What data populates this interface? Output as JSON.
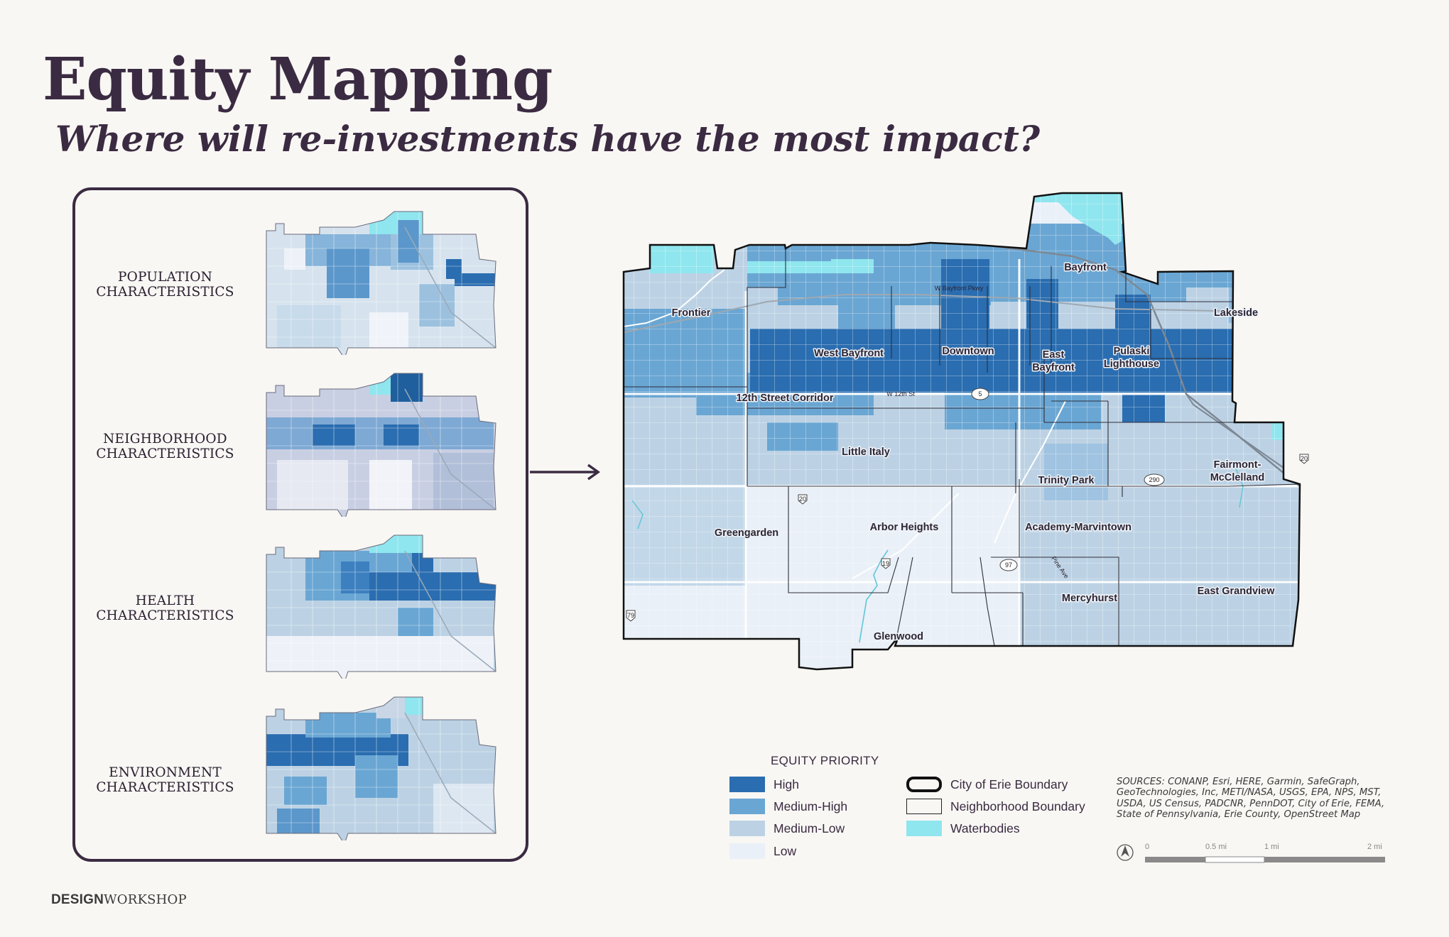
{
  "header": {
    "title": "Equity Mapping",
    "subtitle": "Where will re-investments have the most impact?"
  },
  "thumbnails": [
    {
      "line1": "POPULATION",
      "line2": "CHARACTERISTICS"
    },
    {
      "line1": "NEIGHBORHOOD",
      "line2": "CHARACTERISTICS"
    },
    {
      "line1": "HEALTH",
      "line2": "CHARACTERISTICS"
    },
    {
      "line1": "ENVIRONMENT",
      "line2": "CHARACTERISTICS"
    }
  ],
  "map": {
    "neighborhoods": [
      "Bayfront",
      "Frontier",
      "Lakeside",
      "West Bayfront",
      "Downtown",
      "East Bayfront",
      "Pulaski Lighthouse",
      "12th Street Corridor",
      "Little Italy",
      "Trinity Park",
      "Fairmont-McClelland",
      "Greengarden",
      "Arbor Heights",
      "Academy-Marvintown",
      "Mercyhurst",
      "East Grandview",
      "Glenwood"
    ],
    "roads": [
      "W Bayfront Pkwy",
      "W 12th St",
      "Pine Ave"
    ],
    "route_shields": [
      "5",
      "20",
      "20",
      "19",
      "97",
      "290",
      "79"
    ]
  },
  "legend": {
    "title": "EQUITY PRIORITY",
    "priority": [
      {
        "label": "High",
        "color": "#2a6db0"
      },
      {
        "label": "Medium-High",
        "color": "#6aa6d3"
      },
      {
        "label": "Medium-Low",
        "color": "#bcd2e4"
      },
      {
        "label": "Low",
        "color": "#eaf0f8"
      }
    ],
    "boundaries": [
      {
        "label": "City of Erie Boundary"
      },
      {
        "label": "Neighborhood Boundary"
      },
      {
        "label": "Waterbodies",
        "color": "#8fe6ee"
      }
    ]
  },
  "sources": "SOURCES: CONANP, Esri, HERE, Garmin, SafeGraph, GeoTechnologies, Inc, METI/NASA, USGS, EPA, NPS, MST, USDA, US Census, PADCNR, PennDOT, City of Erie, FEMA, State of Pennsylvania, Erie County, OpenStreet Map",
  "scale_bar": {
    "ticks": [
      "0",
      "0.5 mi",
      "1 mi",
      "2 mi"
    ]
  },
  "brand": {
    "bold": "DESIGN",
    "regular": "WORKSHOP"
  }
}
